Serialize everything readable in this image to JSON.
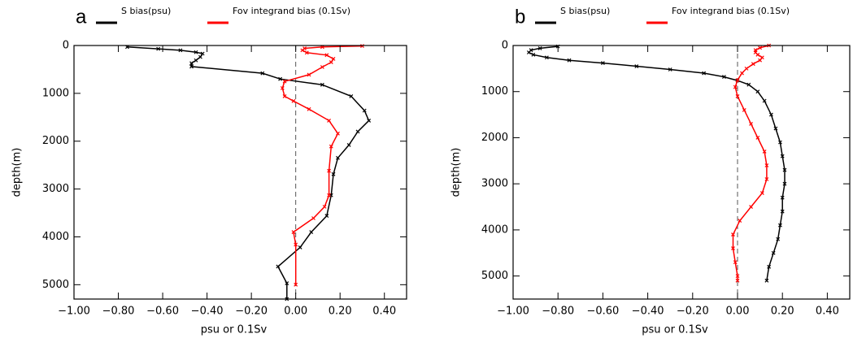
{
  "chart_data": [
    {
      "type": "line",
      "label": "a",
      "xlabel": "psu or 0.1Sv",
      "ylabel": "depth(m)",
      "xlim": [
        -1.0,
        0.5
      ],
      "ylim": [
        0,
        5300
      ],
      "vline": 0,
      "xticks": [
        {
          "value": -1.0,
          "label": "−1.00"
        },
        {
          "value": -0.8,
          "label": "−0.80"
        },
        {
          "value": -0.6,
          "label": "−0.60"
        },
        {
          "value": -0.4,
          "label": "−0.40"
        },
        {
          "value": -0.2,
          "label": "−0.20"
        },
        {
          "value": 0,
          "label": "0.00"
        },
        {
          "value": 0.2,
          "label": "0.20"
        },
        {
          "value": 0.4,
          "label": "0.40"
        }
      ],
      "yticks": [
        0,
        1000,
        2000,
        3000,
        4000,
        5000
      ],
      "series": [
        {
          "name": "S bias(psu)",
          "color": "#000000",
          "values": [
            -0.76,
            -0.62,
            -0.52,
            -0.45,
            -0.42,
            -0.43,
            -0.45,
            -0.47,
            -0.47,
            -0.15,
            -0.07,
            0.12,
            0.25,
            0.31,
            0.33,
            0.28,
            0.24,
            0.19,
            0.17,
            0.16,
            0.14,
            0.07,
            0.02,
            -0.08,
            -0.04,
            -0.04
          ],
          "depth": [
            30,
            70,
            100,
            140,
            170,
            240,
            310,
            370,
            440,
            580,
            700,
            820,
            1060,
            1360,
            1570,
            1800,
            2080,
            2350,
            2690,
            3130,
            3560,
            3900,
            4220,
            4620,
            4970,
            5300
          ]
        },
        {
          "name": "Fov integrand bias (0.1Sv)",
          "color": "#ff0000",
          "values": [
            0.3,
            0.12,
            0.04,
            0.03,
            0.05,
            0.14,
            0.17,
            0.16,
            0.12,
            0.06,
            -0.05,
            -0.06,
            -0.05,
            -0.01,
            0.06,
            0.15,
            0.19,
            0.16,
            0.15,
            0.15,
            0.13,
            0.08,
            -0.01,
            0.0,
            0.0
          ],
          "depth": [
            10,
            30,
            60,
            100,
            150,
            200,
            280,
            350,
            450,
            610,
            750,
            890,
            1060,
            1160,
            1330,
            1570,
            1840,
            2110,
            2620,
            3130,
            3370,
            3610,
            3900,
            4160,
            5000
          ]
        }
      ]
    },
    {
      "type": "line",
      "label": "b",
      "xlabel": "psu or 0.1Sv",
      "ylabel": "depth(m)",
      "xlim": [
        -1.0,
        0.5
      ],
      "ylim": [
        0,
        5500
      ],
      "vline": 0,
      "xticks": [
        {
          "value": -1.0,
          "label": "−1.00"
        },
        {
          "value": -0.8,
          "label": "−0.80"
        },
        {
          "value": -0.6,
          "label": "−0.60"
        },
        {
          "value": -0.4,
          "label": "−0.40"
        },
        {
          "value": -0.2,
          "label": "−0.20"
        },
        {
          "value": 0,
          "label": "0.00"
        },
        {
          "value": 0.2,
          "label": "0.20"
        },
        {
          "value": 0.4,
          "label": "0.40"
        }
      ],
      "yticks": [
        0,
        1000,
        2000,
        3000,
        4000,
        5000
      ],
      "series": [
        {
          "name": "S bias(psu)",
          "color": "#000000",
          "values": [
            -0.8,
            -0.88,
            -0.92,
            -0.93,
            -0.91,
            -0.85,
            -0.75,
            -0.6,
            -0.45,
            -0.3,
            -0.15,
            -0.06,
            0.0,
            0.05,
            0.09,
            0.12,
            0.15,
            0.17,
            0.19,
            0.2,
            0.21,
            0.21,
            0.2,
            0.2,
            0.19,
            0.18,
            0.16,
            0.14,
            0.13
          ],
          "depth": [
            20,
            60,
            100,
            150,
            200,
            260,
            320,
            380,
            450,
            520,
            600,
            680,
            760,
            850,
            1000,
            1200,
            1500,
            1800,
            2100,
            2400,
            2700,
            3000,
            3300,
            3600,
            3900,
            4200,
            4500,
            4800,
            5100
          ]
        },
        {
          "name": "Fov integrand bias (0.1Sv)",
          "color": "#ff0000",
          "values": [
            0.14,
            0.1,
            0.08,
            0.08,
            0.09,
            0.11,
            0.1,
            0.07,
            0.04,
            0.02,
            0.0,
            -0.01,
            0.0,
            0.03,
            0.06,
            0.09,
            0.12,
            0.13,
            0.13,
            0.11,
            0.06,
            0.01,
            -0.02,
            -0.02,
            -0.01,
            0.0,
            0.0
          ],
          "depth": [
            0,
            50,
            100,
            150,
            200,
            260,
            320,
            400,
            500,
            600,
            750,
            900,
            1100,
            1400,
            1700,
            2000,
            2300,
            2600,
            2900,
            3200,
            3500,
            3800,
            4100,
            4400,
            4700,
            5000,
            5100
          ]
        }
      ]
    }
  ]
}
